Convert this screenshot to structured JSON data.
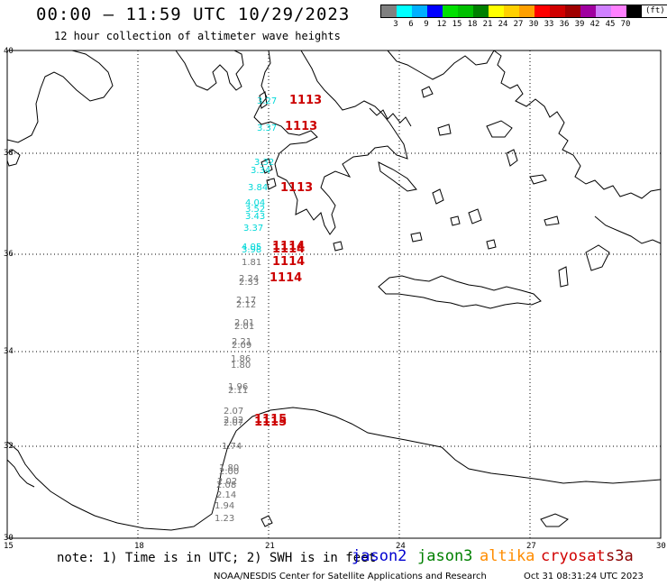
{
  "header": {
    "title": "00:00 – 11:59 UTC 10/29/2023",
    "subtitle": "12 hour collection of altimeter wave heights"
  },
  "legend": {
    "colors": [
      "#808080",
      "#00ffff",
      "#00b0ff",
      "#0000ff",
      "#00e000",
      "#00c000",
      "#008000",
      "#ffff00",
      "#ffd000",
      "#ffa000",
      "#ff0000",
      "#d00000",
      "#a00000",
      "#a000a0",
      "#d080ff",
      "#ff80ff",
      "#000000"
    ],
    "labels": [
      "3",
      "6",
      "9",
      "12",
      "15",
      "18",
      "21",
      "24",
      "27",
      "30",
      "33",
      "36",
      "39",
      "42",
      "45",
      "70"
    ],
    "unit": "(ft)"
  },
  "axes": {
    "lat_labels": [
      "40",
      "38",
      "36",
      "34",
      "32",
      "30"
    ],
    "lon_labels": [
      "15",
      "18",
      "21",
      "24",
      "27",
      "30"
    ]
  },
  "observations": [
    {
      "text": "3.27",
      "color": "#00d8d8"
    },
    {
      "text": "3.37",
      "color": "#00d8d8"
    },
    {
      "text": "3.32",
      "color": "#00d8d8"
    },
    {
      "text": "3.34",
      "color": "#00d8d8"
    },
    {
      "text": "3.84",
      "color": "#00d8d8"
    },
    {
      "text": "4.04",
      "color": "#00d8d8"
    },
    {
      "text": "3.52",
      "color": "#00d8d8"
    },
    {
      "text": "3.43",
      "color": "#00d8d8"
    },
    {
      "text": "3.37",
      "color": "#00d8d8"
    },
    {
      "text": "4.05",
      "color": "#00d8d8"
    },
    {
      "text": "3.98",
      "color": "#00d8d8"
    },
    {
      "text": "1.81",
      "color": "#707070"
    },
    {
      "text": "2.24",
      "color": "#707070"
    },
    {
      "text": "2.33",
      "color": "#707070"
    },
    {
      "text": "2.17",
      "color": "#707070"
    },
    {
      "text": "2.12",
      "color": "#707070"
    },
    {
      "text": "2.01",
      "color": "#707070"
    },
    {
      "text": "2.01",
      "color": "#707070"
    },
    {
      "text": "2.21",
      "color": "#707070"
    },
    {
      "text": "2.09",
      "color": "#707070"
    },
    {
      "text": "1.86",
      "color": "#707070"
    },
    {
      "text": "1.80",
      "color": "#707070"
    },
    {
      "text": "1.96",
      "color": "#707070"
    },
    {
      "text": "2.11",
      "color": "#707070"
    },
    {
      "text": "2.07",
      "color": "#707070"
    },
    {
      "text": "2.02",
      "color": "#707070"
    },
    {
      "text": "2.07",
      "color": "#707070"
    },
    {
      "text": "1.74",
      "color": "#707070"
    },
    {
      "text": "1.80",
      "color": "#707070"
    },
    {
      "text": "2.00",
      "color": "#707070"
    },
    {
      "text": "2.02",
      "color": "#707070"
    },
    {
      "text": "2.08",
      "color": "#707070"
    },
    {
      "text": "2.14",
      "color": "#707070"
    },
    {
      "text": "1.94",
      "color": "#707070"
    },
    {
      "text": "1.23",
      "color": "#707070"
    }
  ],
  "pass_times": [
    "1113",
    "1113",
    "1113",
    "1114",
    "1114",
    "1114",
    "1114",
    "1115",
    "1115"
  ],
  "footer": {
    "note": "note: 1) Time is in UTC; 2) SWH is in feet",
    "satellites": [
      {
        "name": "jason2",
        "color": "#0000d0"
      },
      {
        "name": "jason3",
        "color": "#008000"
      },
      {
        "name": "altika",
        "color": "#ff8c00"
      },
      {
        "name": "cryosat",
        "color": "#d00000"
      },
      {
        "name": "s3a",
        "color": "#8b0000"
      }
    ],
    "credit": "NOAA/NESDIS Center for Satellite Applications and Research",
    "timestamp": "Oct 31 08:31:24 UTC 2023"
  }
}
